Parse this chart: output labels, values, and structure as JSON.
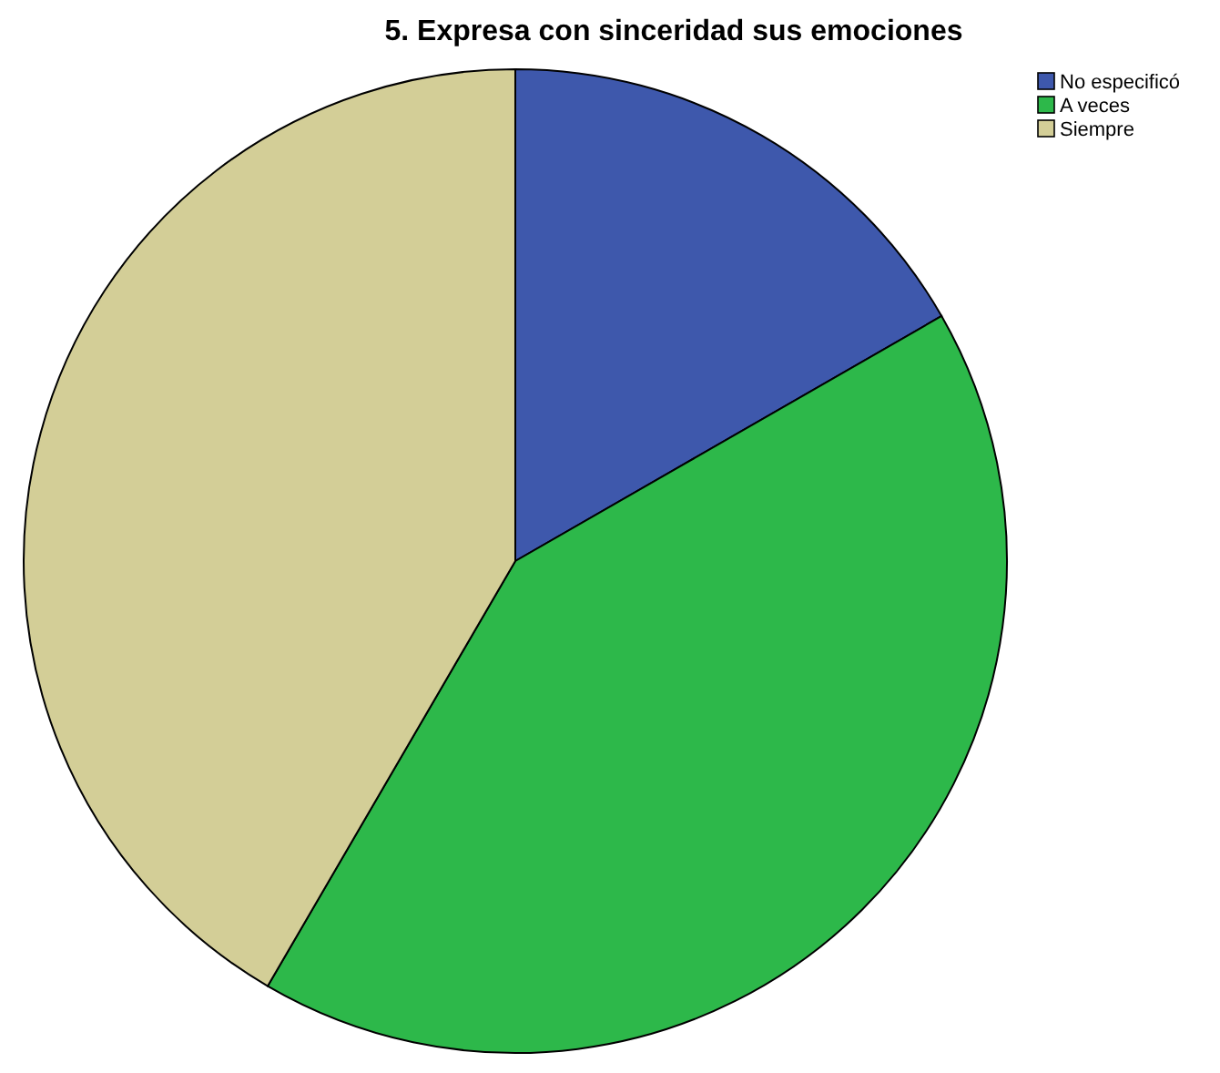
{
  "chart_data": {
    "type": "pie",
    "title": "5. Expresa con sinceridad sus emociones",
    "categories": [
      "No especificó",
      "A veces",
      "Siempre"
    ],
    "values": [
      16.7,
      41.7,
      41.6
    ],
    "colors": [
      "#3e58ac",
      "#2db84a",
      "#d3ce97"
    ],
    "legend": "top right"
  }
}
